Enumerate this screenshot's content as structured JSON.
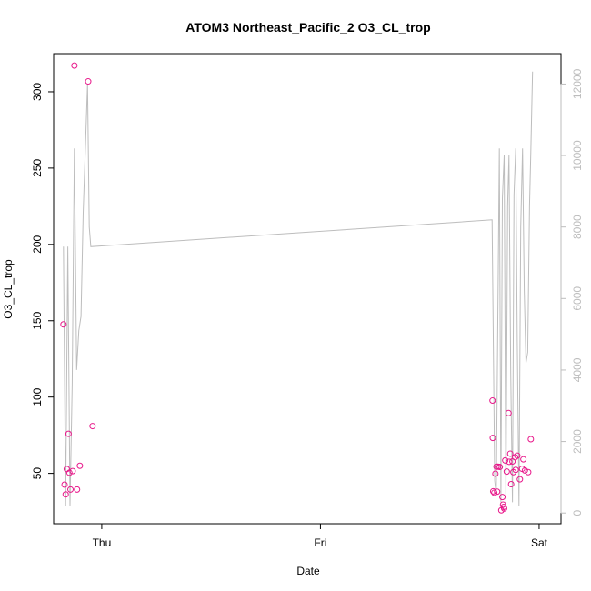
{
  "chart_data": {
    "type": "scatter",
    "title": "ATOM3 Northeast_Pacific_2 O3_CL_trop",
    "xlabel": "Date",
    "ylabel": "O3_CL_trop",
    "x_ticks": [
      "Thu",
      "Fri",
      "Sat"
    ],
    "x_tick_positions": [
      1.0,
      2.0,
      3.0
    ],
    "xlim": [
      0.78,
      3.1
    ],
    "ylim": [
      17,
      325
    ],
    "y_ticks": [
      50,
      100,
      150,
      200,
      250,
      300
    ],
    "y2lim": [
      -300,
      12850
    ],
    "y2_ticks": [
      0,
      2000,
      4000,
      6000,
      8000,
      10000,
      12000
    ],
    "grid": false,
    "series": [
      {
        "kind": "points",
        "color": "#e8178a",
        "x": [
          0.825,
          0.83,
          0.835,
          0.84,
          0.848,
          0.852,
          0.857,
          0.867,
          0.875,
          0.887,
          0.9,
          0.938,
          0.958,
          2.787,
          2.788,
          2.79,
          2.795,
          2.8,
          2.805,
          2.808,
          2.812,
          2.82,
          2.827,
          2.832,
          2.835,
          2.838,
          2.84,
          2.845,
          2.852,
          2.86,
          2.863,
          2.868,
          2.872,
          2.878,
          2.882,
          2.89,
          2.893,
          2.9,
          2.912,
          2.922,
          2.928,
          2.935,
          2.95,
          2.962
        ],
        "y": [
          147.6,
          42.6,
          36.2,
          52.8,
          75.9,
          50.4,
          39.4,
          51.5,
          317.2,
          39.4,
          55.0,
          306.8,
          81.0,
          97.7,
          73.2,
          38.2,
          37.3,
          49.8,
          54.4,
          38.0,
          54.4,
          54.2,
          25.8,
          34.5,
          29.5,
          28.0,
          27.0,
          58.5,
          51.2,
          89.5,
          57.6,
          62.9,
          42.9,
          57.8,
          50.8,
          60.6,
          52.3,
          61.6,
          46.1,
          53.0,
          59.2,
          51.9,
          50.8,
          72.4
        ]
      },
      {
        "kind": "line",
        "axis": "right",
        "color": "#bdbdbd",
        "x": [
          0.825,
          0.835,
          0.845,
          0.855,
          0.865,
          0.875,
          0.885,
          0.895,
          0.905,
          0.915,
          0.935,
          0.943,
          0.95,
          2.785,
          2.79,
          2.797,
          2.804,
          2.81,
          2.818,
          2.825,
          2.832,
          2.84,
          2.848,
          2.856,
          2.862,
          2.87,
          2.878,
          2.885,
          2.893,
          2.9,
          2.908,
          2.916,
          2.924,
          2.932,
          2.94,
          2.948,
          2.956,
          2.962,
          2.97
        ],
        "y": [
          7450,
          200,
          7450,
          200,
          3600,
          10200,
          4000,
          5100,
          5500,
          8400,
          12000,
          8000,
          7450,
          8200,
          5200,
          900,
          500,
          4800,
          10200,
          300,
          8800,
          10000,
          300,
          8600,
          10000,
          3900,
          300,
          8900,
          10200,
          4800,
          200,
          8000,
          10200,
          6200,
          4200,
          4500,
          8600,
          10100,
          12350
        ]
      }
    ]
  }
}
